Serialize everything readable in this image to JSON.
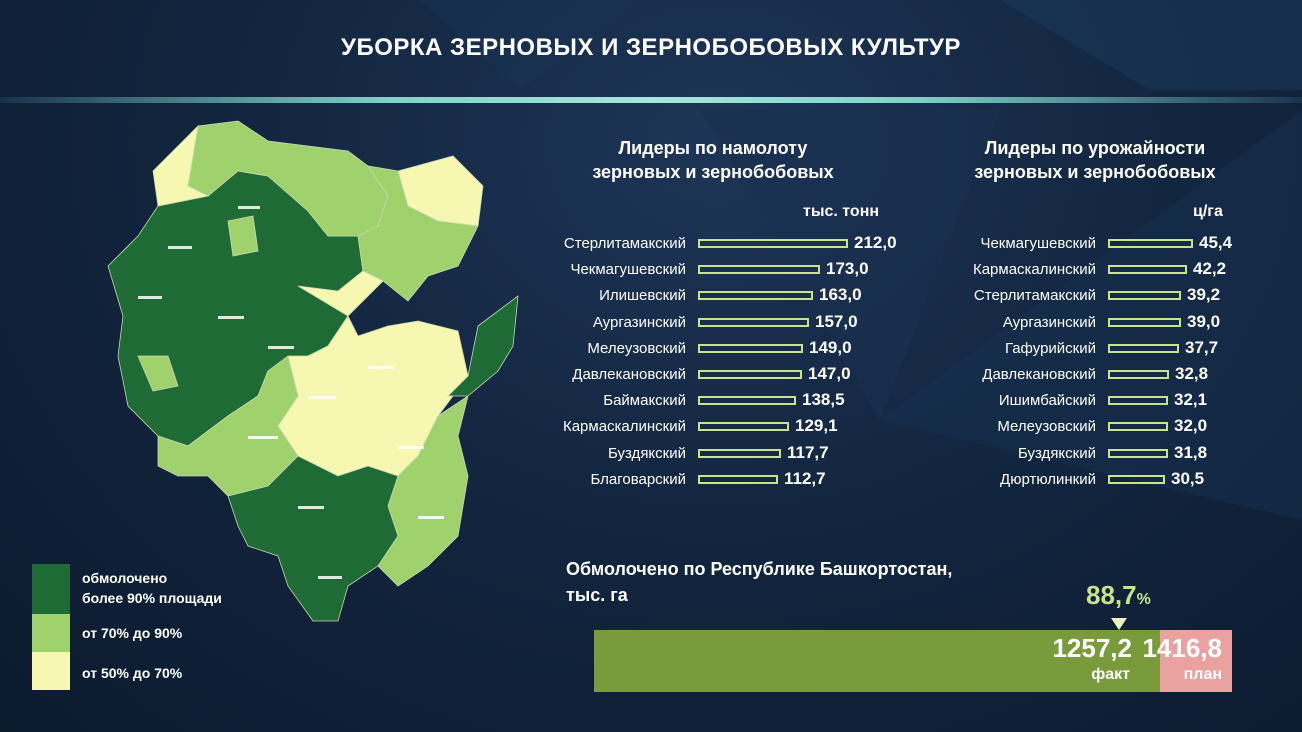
{
  "title": "УБОРКА ЗЕРНОВЫХ И ЗЕРНОБОБОВЫХ КУЛЬТУР",
  "colors": {
    "dark_green": "#1f6b35",
    "mid_green": "#9fd16c",
    "light_yellow": "#f6f7b0",
    "bar_outline": "#c9e38b",
    "fact": "#7a9b3c",
    "plan": "#eaa2a0"
  },
  "legend": [
    {
      "label_line1": "обмолочено",
      "label_line2": "более 90% площади",
      "color": "#1f6b35"
    },
    {
      "label_line1": "от 70% до 90%",
      "label_line2": "",
      "color": "#9fd16c"
    },
    {
      "label_line1": "от 50% до 70%",
      "label_line2": "",
      "color": "#f6f7b0"
    }
  ],
  "threshing": {
    "heading_line1": "Лидеры по намолоту",
    "heading_line2": "зерновых и зернобобовых",
    "unit": "тыс. тонн"
  },
  "yield": {
    "heading_line1": "Лидеры по урожайности",
    "heading_line2": "зерновых и зернобобовых",
    "unit": "ц/га"
  },
  "chart_data": [
    {
      "type": "bar",
      "orientation": "horizontal",
      "title": "Лидеры по намолоту зерновых и зернобобовых",
      "ylabel": "тыс. тонн",
      "categories": [
        "Стерлитамакский",
        "Чекмагушевский",
        "Илишевский",
        "Аургазинский",
        "Мелеузовский",
        "Давлекановский",
        "Баймакский",
        "Кармаскалинский",
        "Буздякский",
        "Благоварский"
      ],
      "values": [
        212.0,
        173.0,
        163.0,
        157.0,
        149.0,
        147.0,
        138.5,
        129.1,
        117.7,
        112.7
      ],
      "value_labels": [
        "212,0",
        "173,0",
        "163,0",
        "157,0",
        "149,0",
        "147,0",
        "138,5",
        "129,1",
        "117,7",
        "112,7"
      ]
    },
    {
      "type": "bar",
      "orientation": "horizontal",
      "title": "Лидеры по урожайности зерновых и зернобобовых",
      "ylabel": "ц/га",
      "categories": [
        "Чекмагушевский",
        "Кармаскалинский",
        "Стерлитамакский",
        "Аургазинский",
        "Гафурийский",
        "Давлекановский",
        "Ишимбайский",
        "Мелеузовский",
        "Буздякский",
        "Дюртюлинкий"
      ],
      "values": [
        45.4,
        42.2,
        39.2,
        39.0,
        37.7,
        32.8,
        32.1,
        32.0,
        31.8,
        30.5
      ],
      "value_labels": [
        "45,4",
        "42,2",
        "39,2",
        "39,0",
        "37,7",
        "32,8",
        "32,1",
        "32,0",
        "31,8",
        "30,5"
      ]
    }
  ],
  "summary": {
    "title_line1": "Обмолочено по Республике Башкортостан,",
    "title_line2": "тыс. га",
    "percent": "88,7",
    "percent_sign": "%",
    "fact_value": "1257,2",
    "fact_label": "факт",
    "plan_value": "1416,8",
    "plan_label": "план",
    "fact_share": 0.887
  }
}
